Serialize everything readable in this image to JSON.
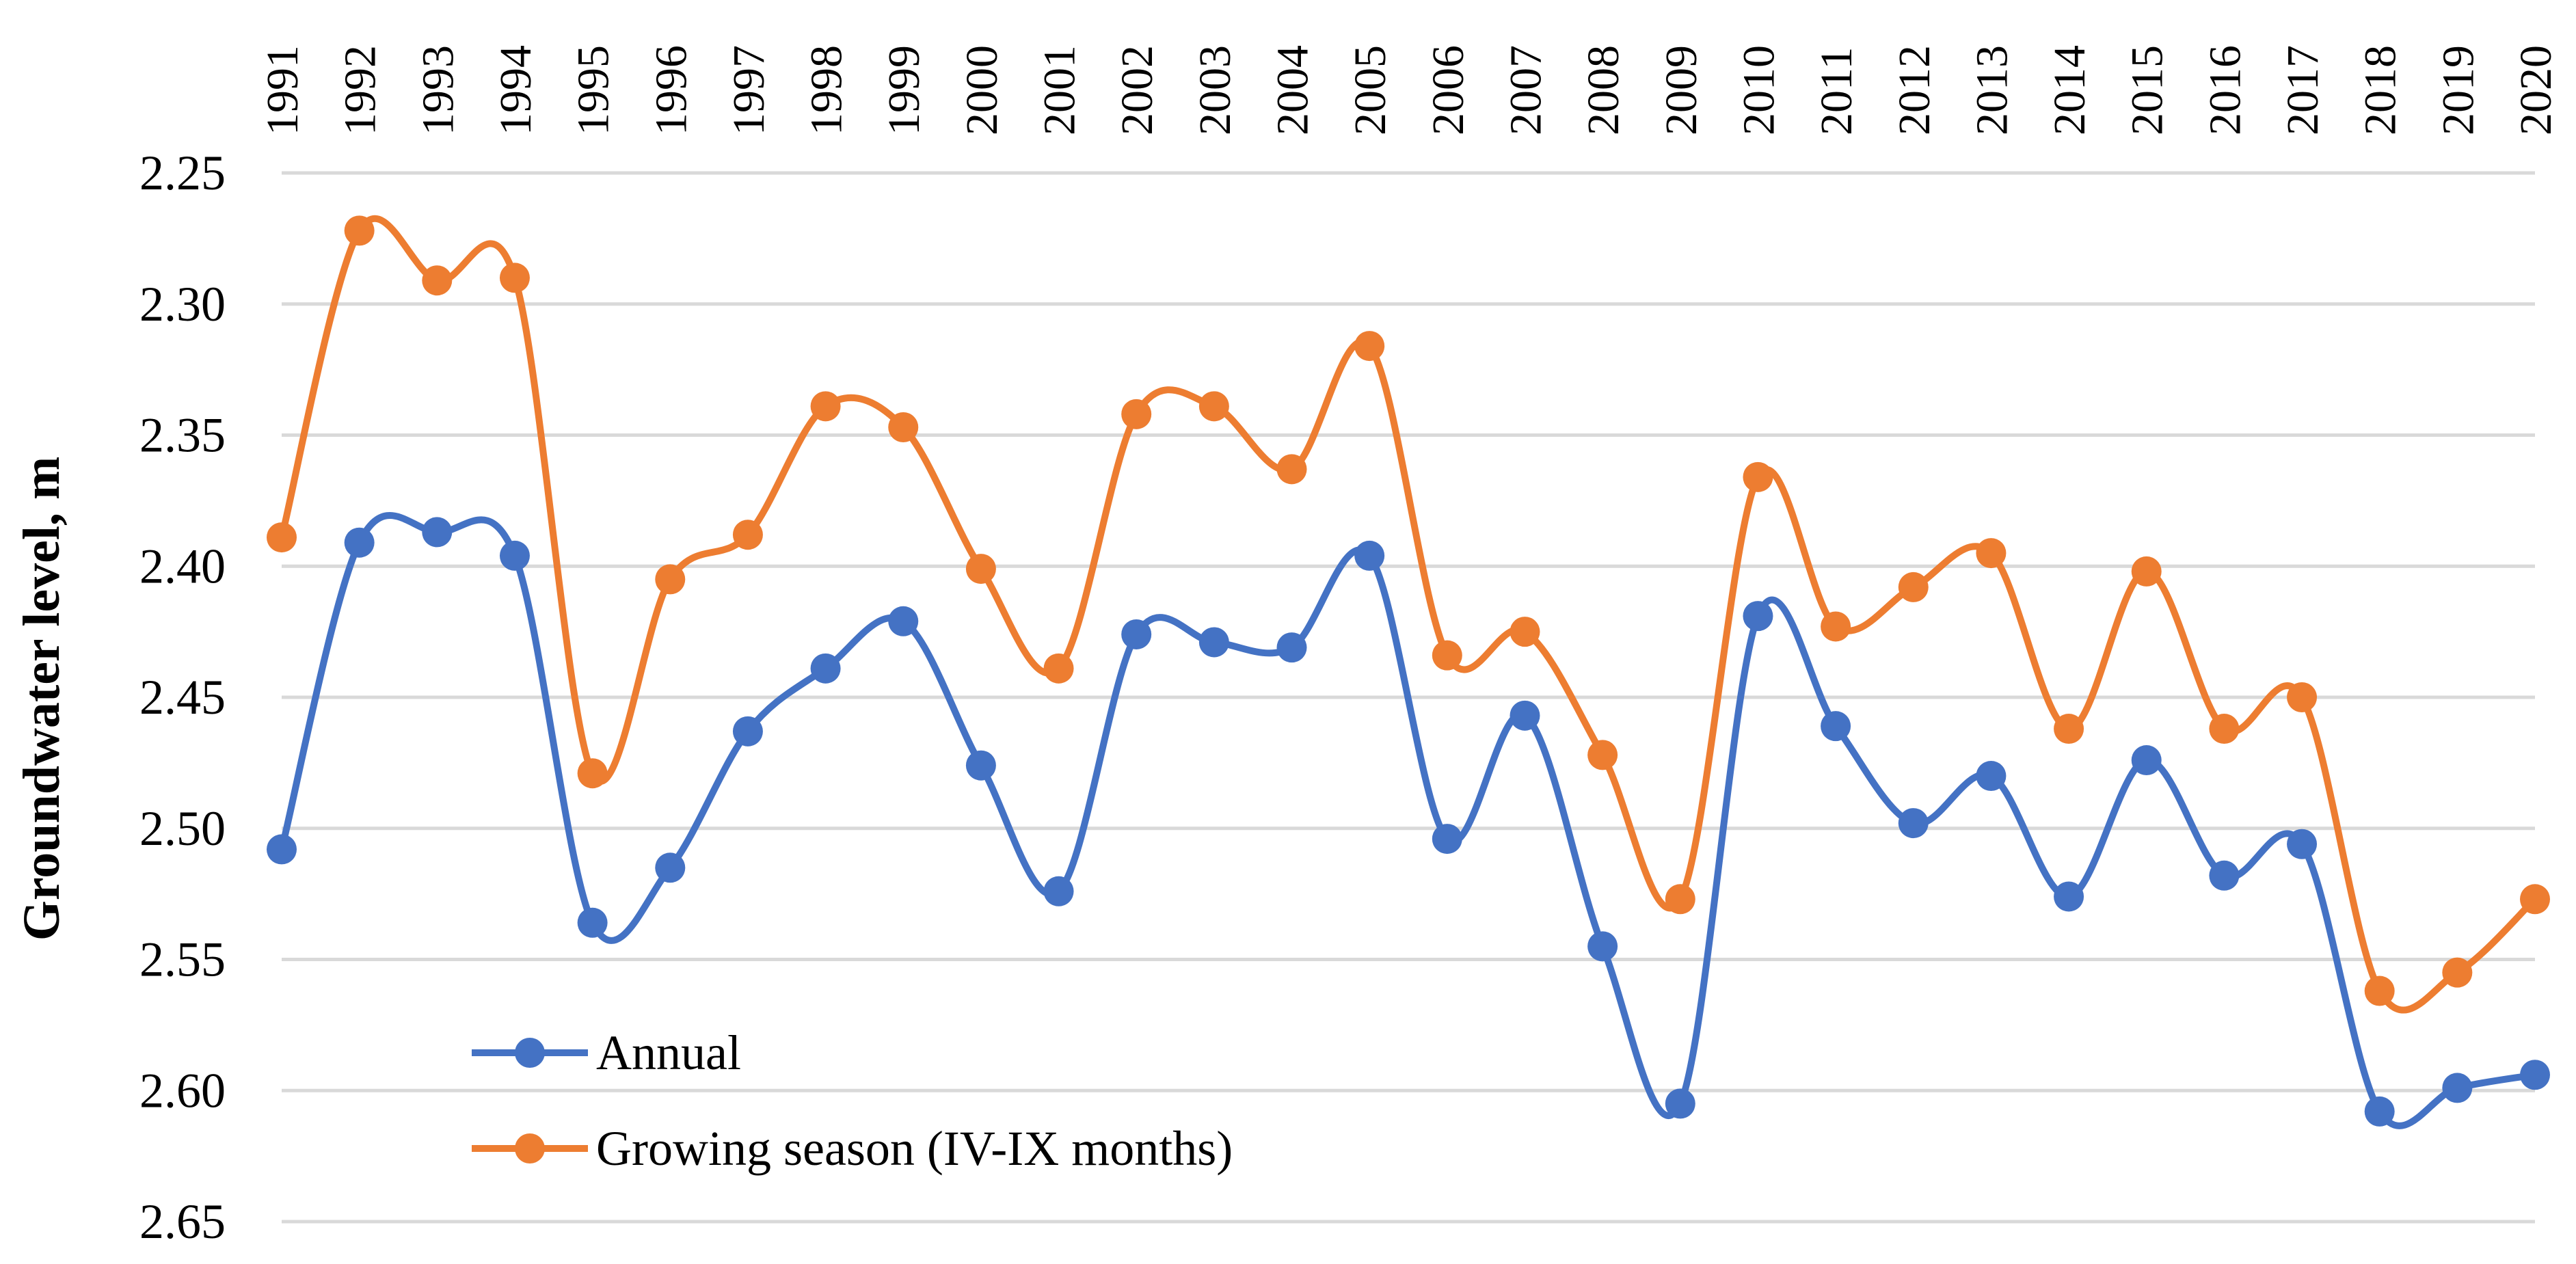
{
  "chart_data": {
    "type": "line",
    "title": "",
    "xlabel": "",
    "ylabel": "Groundwater level, m",
    "y_axis_reversed": true,
    "ylim": [
      2.25,
      2.65
    ],
    "y_ticks": [
      "2.25",
      "2.30",
      "2.35",
      "2.40",
      "2.45",
      "2.50",
      "2.55",
      "2.60",
      "2.65"
    ],
    "x_axis_position": "top",
    "x_tick_rotation": "vertical",
    "grid": "horizontal",
    "smoothed_lines": true,
    "legend_position": "bottom-left inside plot",
    "categories": [
      "1991",
      "1992",
      "1993",
      "1994",
      "1995",
      "1996",
      "1997",
      "1998",
      "1999",
      "2000",
      "2001",
      "2002",
      "2003",
      "2004",
      "2005",
      "2006",
      "2007",
      "2008",
      "2009",
      "2010",
      "2011",
      "2012",
      "2013",
      "2014",
      "2015",
      "2016",
      "2017",
      "2018",
      "2019",
      "2020"
    ],
    "series": [
      {
        "name": "Annual",
        "color": "#4472C4",
        "values": [
          2.508,
          2.391,
          2.387,
          2.396,
          2.536,
          2.515,
          2.463,
          2.439,
          2.421,
          2.476,
          2.524,
          2.426,
          2.429,
          2.431,
          2.396,
          2.504,
          2.457,
          2.545,
          2.605,
          2.419,
          2.461,
          2.498,
          2.48,
          2.526,
          2.474,
          2.518,
          2.506,
          2.608,
          2.599,
          2.594
        ]
      },
      {
        "name": "Growing season (IV-IX months)",
        "color": "#ED7D31",
        "values": [
          2.389,
          2.272,
          2.291,
          2.29,
          2.479,
          2.405,
          2.388,
          2.339,
          2.347,
          2.401,
          2.439,
          2.342,
          2.339,
          2.363,
          2.316,
          2.434,
          2.425,
          2.472,
          2.527,
          2.366,
          2.423,
          2.408,
          2.395,
          2.462,
          2.402,
          2.462,
          2.45,
          2.562,
          2.555,
          2.527
        ]
      }
    ]
  }
}
